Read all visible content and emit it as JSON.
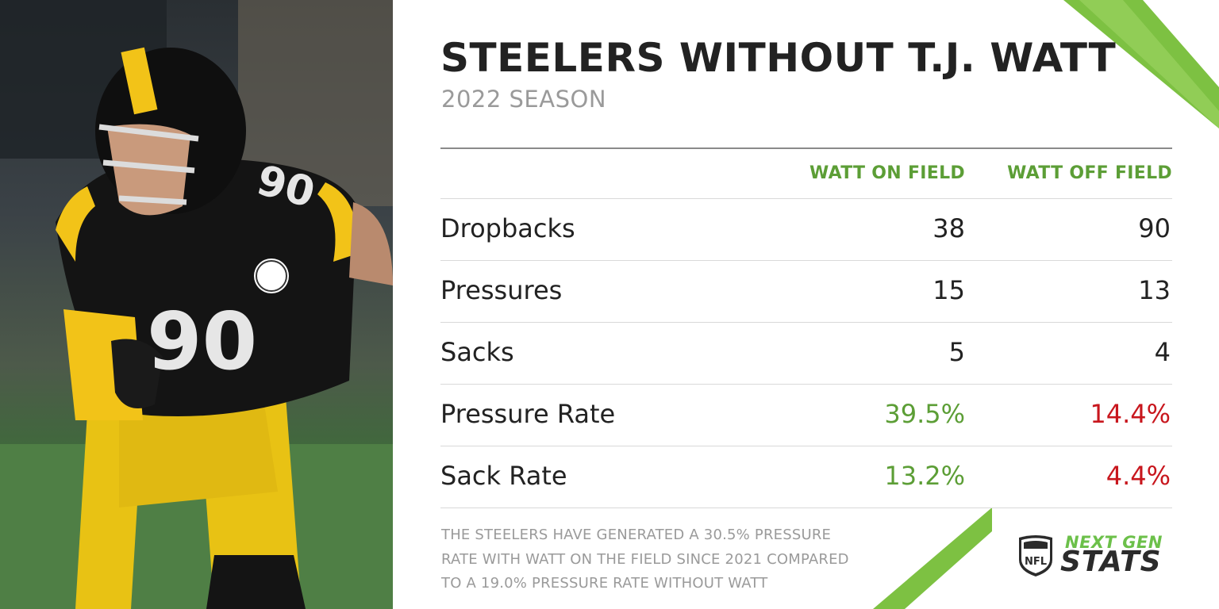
{
  "header": {
    "title": "STEELERS WITHOUT T.J. WATT",
    "subtitle": "2022 SEASON"
  },
  "photo": {
    "jersey_number": "90",
    "description_icon": "player-photo"
  },
  "table": {
    "columns": [
      "WATT ON FIELD",
      "WATT OFF FIELD"
    ],
    "rows": [
      {
        "label": "Dropbacks",
        "on": "38",
        "off": "90"
      },
      {
        "label": "Pressures",
        "on": "15",
        "off": "13"
      },
      {
        "label": "Sacks",
        "on": "5",
        "off": "4"
      },
      {
        "label": "Pressure Rate",
        "on": "39.5%",
        "off": "14.4%"
      },
      {
        "label": "Sack Rate",
        "on": "13.2%",
        "off": "4.4%"
      }
    ]
  },
  "note": {
    "lines": [
      "THE STEELERS HAVE GENERATED A 30.5% PRESSURE",
      "RATE WITH WATT ON THE FIELD SINCE 2021 COMPARED",
      "TO A 19.0% PRESSURE RATE WITHOUT WATT"
    ]
  },
  "logo": {
    "shield_text": "NFL",
    "line1": "NEXT GEN",
    "line2": "STATS"
  },
  "colors": {
    "accent_green": "#5c9e36",
    "logo_green": "#6cc04a",
    "negative_red": "#c8161d",
    "title": "#222222",
    "muted": "#9a9a9a"
  }
}
